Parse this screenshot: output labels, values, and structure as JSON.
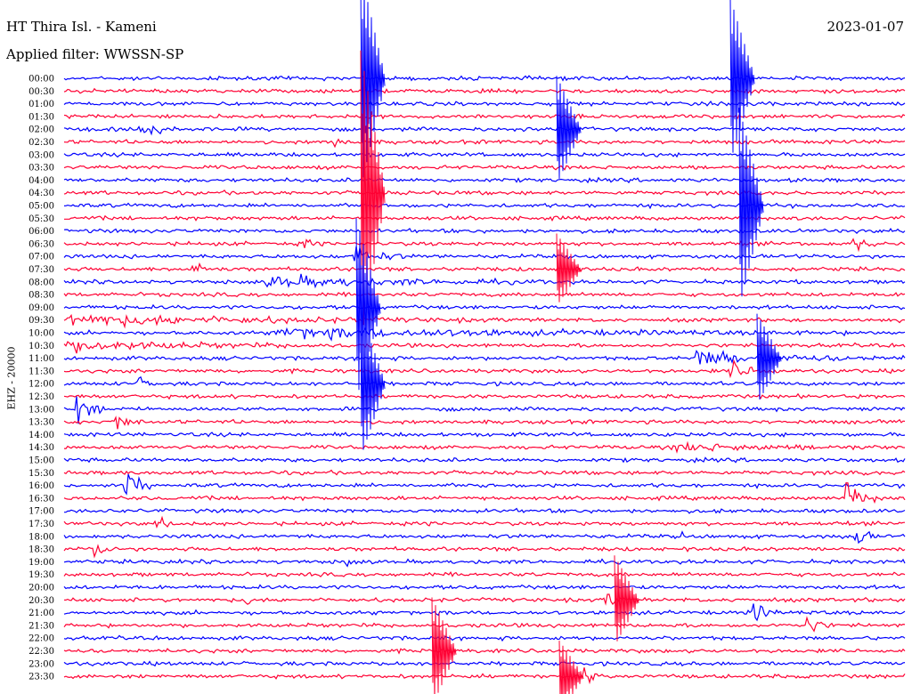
{
  "header": {
    "station": "HT Thira Isl. - Kameni",
    "filter": "Applied filter: WWSSN-SP",
    "date": "2023-01-07"
  },
  "channel_label": "EHZ - 20000",
  "colors": {
    "line_a": "#0000ff",
    "line_b": "#ff0033",
    "background": "#ffffff"
  },
  "chart_data": {
    "type": "line",
    "title": "HT Thira Isl. - Kameni",
    "subtitle": "Applied filter: WWSSN-SP",
    "ylabel": "EHZ - 20000",
    "xlabel": "",
    "y_ticks": [
      "00:00",
      "00:30",
      "01:00",
      "01:30",
      "02:00",
      "02:30",
      "03:00",
      "03:30",
      "04:00",
      "04:30",
      "05:00",
      "05:30",
      "06:00",
      "06:30",
      "07:00",
      "07:30",
      "08:00",
      "08:30",
      "09:00",
      "09:30",
      "10:00",
      "10:30",
      "11:00",
      "11:30",
      "12:00",
      "12:30",
      "13:00",
      "13:30",
      "14:00",
      "14:30",
      "15:00",
      "15:30",
      "16:00",
      "16:30",
      "17:00",
      "17:30",
      "18:00",
      "18:30",
      "19:00",
      "19:30",
      "20:00",
      "20:30",
      "21:00",
      "21:30",
      "22:00",
      "22:30",
      "23:00",
      "23:30"
    ],
    "trace_colors": [
      "#0000ff",
      "#ff0033"
    ],
    "grid": false,
    "legend": "none"
  }
}
